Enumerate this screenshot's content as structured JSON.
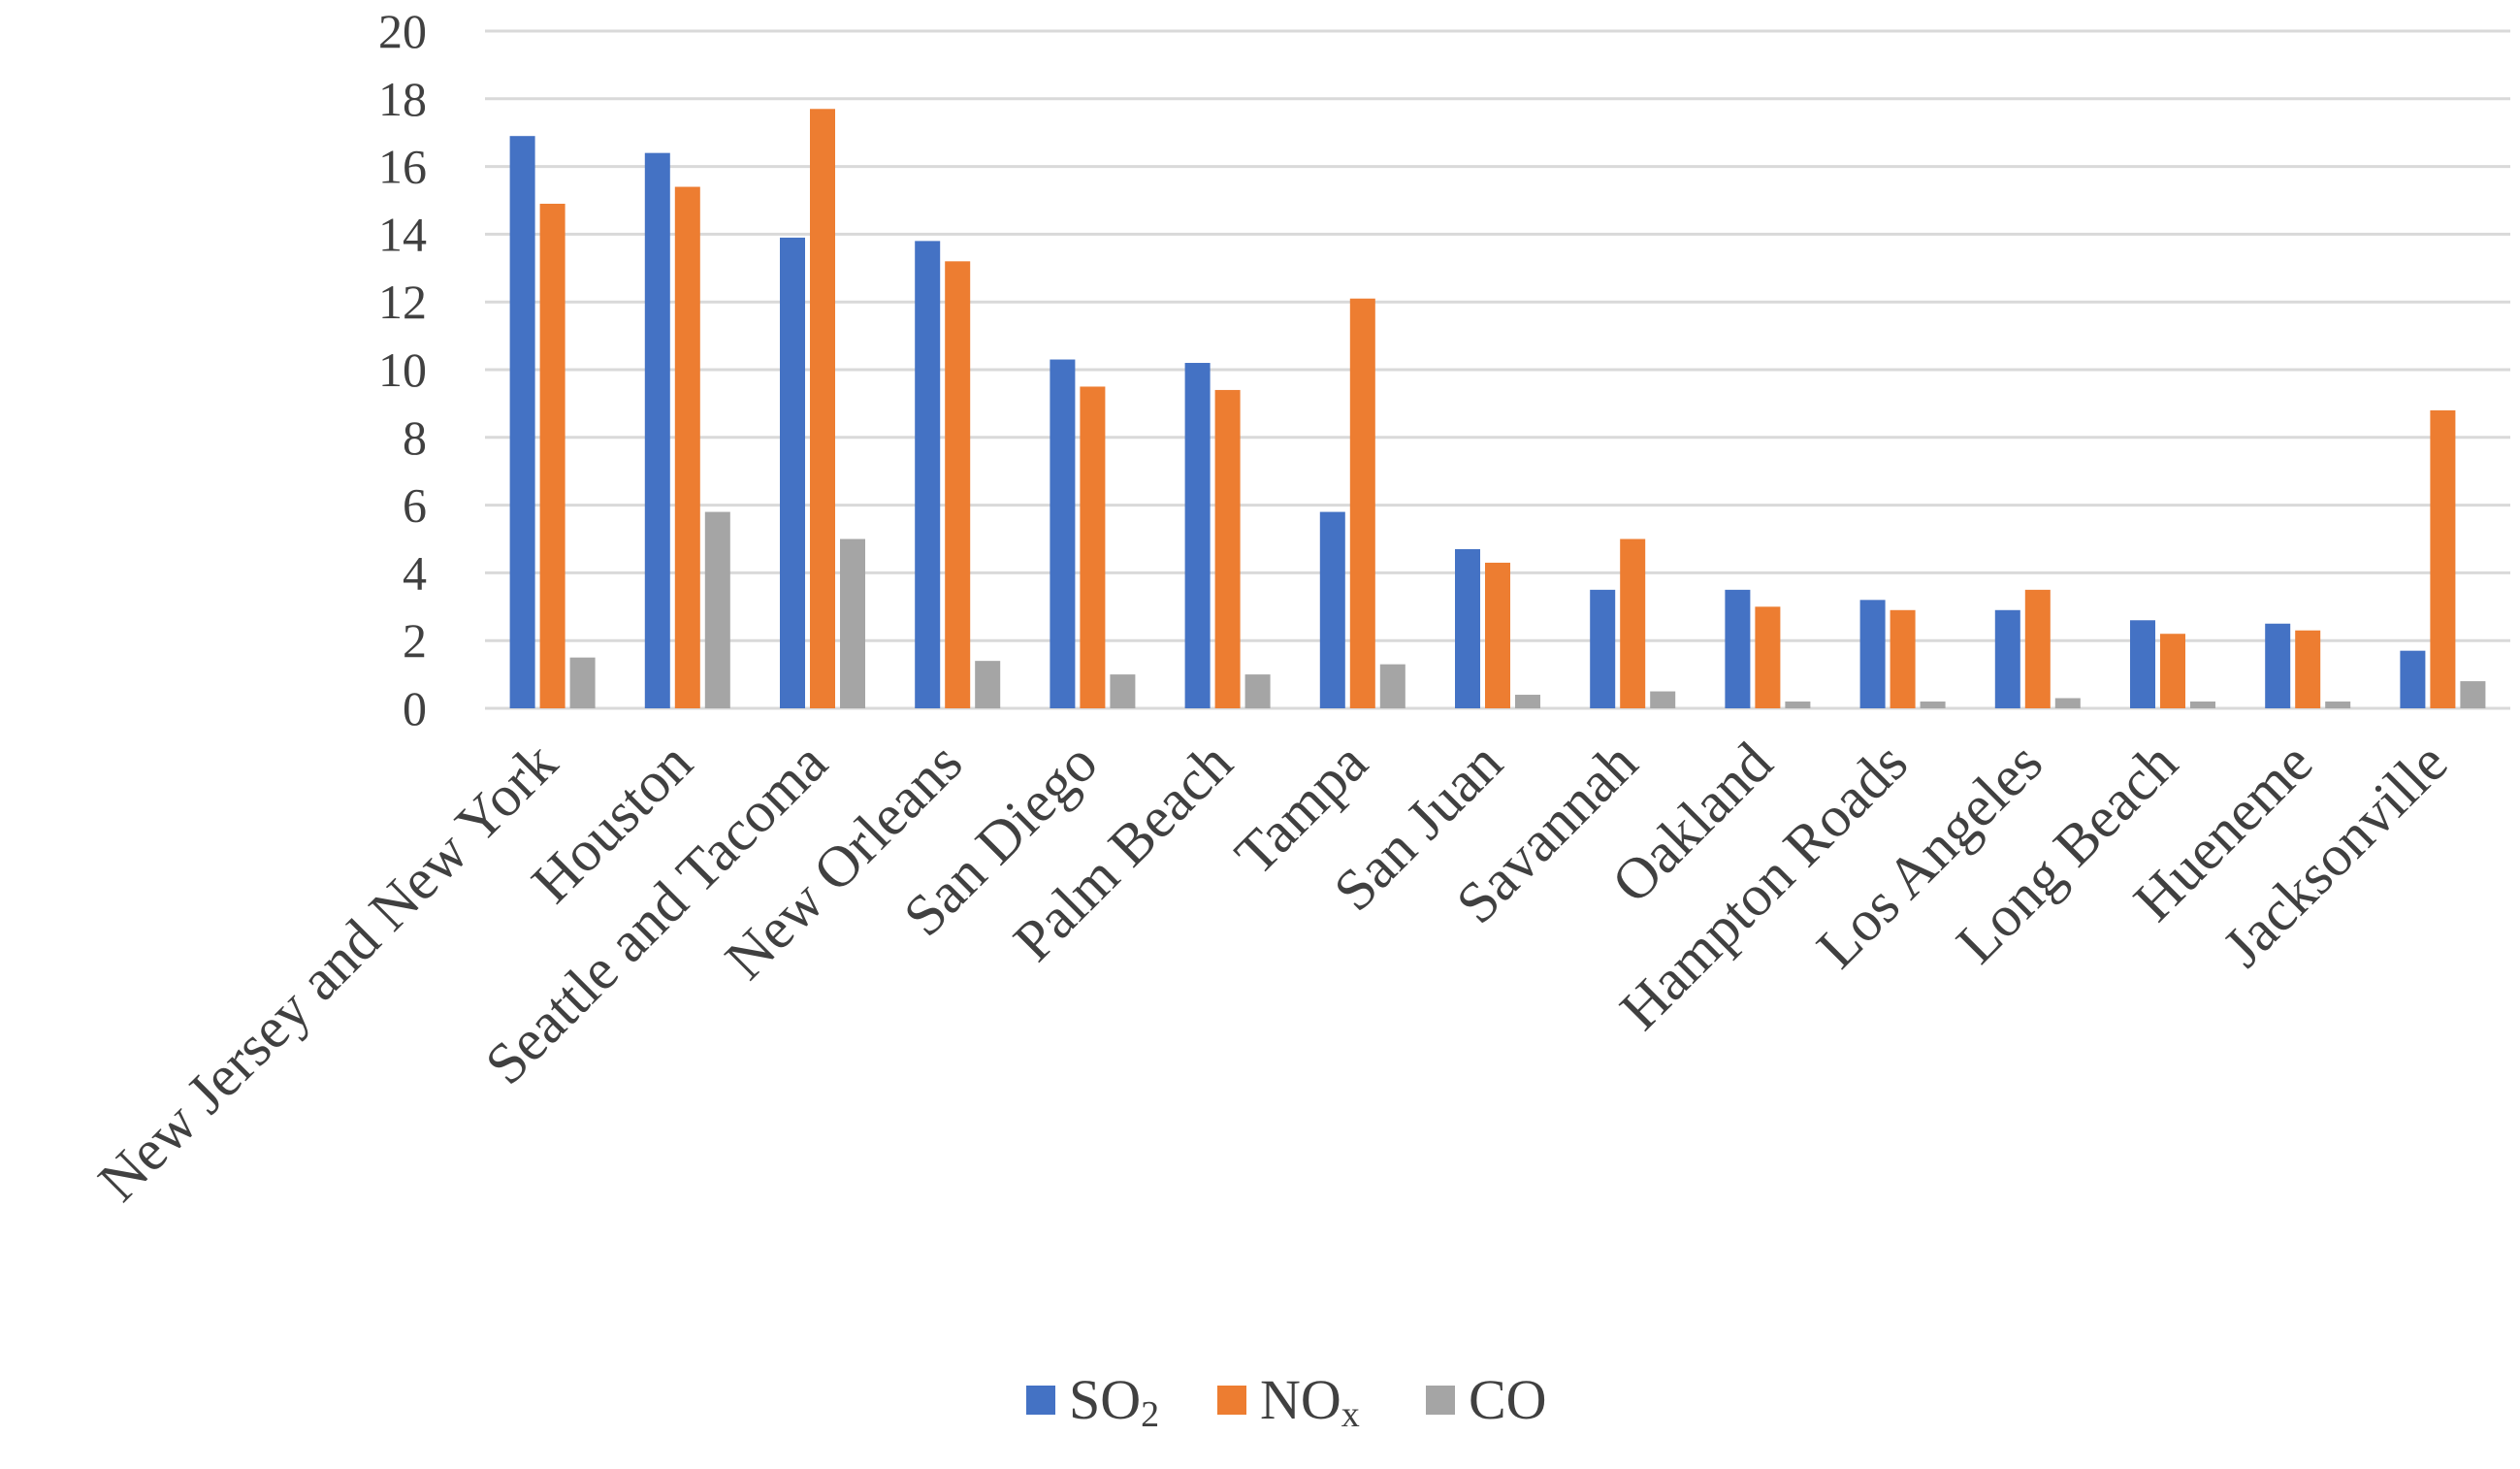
{
  "chart_data": {
    "type": "bar",
    "title": "",
    "xlabel": "",
    "ylabel": "",
    "ylim": [
      0,
      20
    ],
    "yticks": [
      "0",
      "2",
      "4",
      "6",
      "8",
      "10",
      "12",
      "14",
      "16",
      "18",
      "20"
    ],
    "grid": true,
    "legend_position": "bottom-center",
    "categories": [
      "New Jersey and New York",
      "Houston",
      "Seattle and Tacoma",
      "New Orleans",
      "San Diego",
      "Palm Beach",
      "Tampa",
      "San Juan",
      "Savannah",
      "Oakland",
      "Hampton Roads",
      "Los Angeles",
      "Long Beach",
      "Hueneme",
      "Jacksonville"
    ],
    "series": [
      {
        "name": "SO₂",
        "legend_main": "SO",
        "legend_sub": "2",
        "color": "#4472c4",
        "values": [
          16.9,
          16.4,
          13.9,
          13.8,
          10.3,
          10.2,
          5.8,
          4.7,
          3.5,
          3.5,
          3.2,
          2.9,
          2.6,
          2.5,
          1.7
        ]
      },
      {
        "name": "NOₓ",
        "legend_main": "NO",
        "legend_sub": "x",
        "color": "#ed7d31",
        "values": [
          14.9,
          15.4,
          17.7,
          13.2,
          9.5,
          9.4,
          12.1,
          4.3,
          5.0,
          3.0,
          2.9,
          3.5,
          2.2,
          2.3,
          8.8
        ]
      },
      {
        "name": "CO",
        "legend_main": "CO",
        "legend_sub": "",
        "color": "#a5a5a5",
        "values": [
          1.5,
          5.8,
          5.0,
          1.4,
          1.0,
          1.0,
          1.3,
          0.4,
          0.5,
          0.2,
          0.2,
          0.3,
          0.2,
          0.2,
          0.8
        ]
      }
    ]
  }
}
